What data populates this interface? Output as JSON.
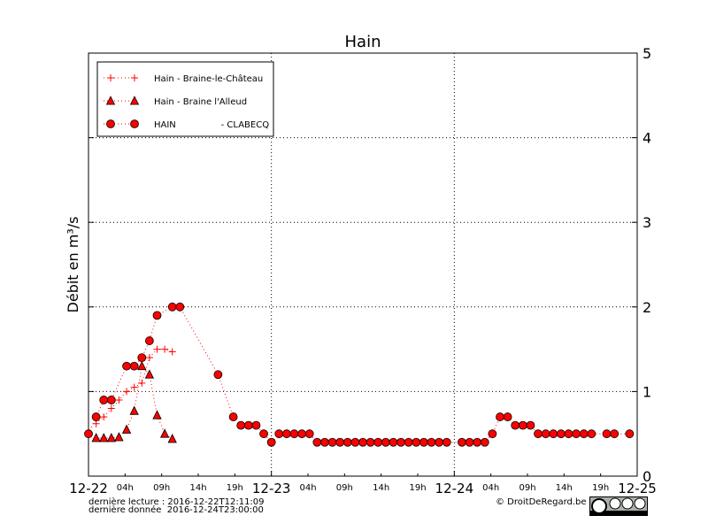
{
  "chart_data": {
    "type": "line",
    "title": "Hain",
    "y_label": "Débit en m³/s",
    "xlim": [
      0,
      72
    ],
    "ylim": [
      0,
      5
    ],
    "yticks": [
      0,
      1,
      2,
      3,
      4,
      5
    ],
    "grid": true,
    "legend": "upper left",
    "xticks": [
      {
        "value": 0,
        "label": "12-22"
      },
      {
        "value": 24,
        "label": "12-23"
      },
      {
        "value": 48,
        "label": "12-24"
      },
      {
        "value": 72,
        "label": "12-25"
      }
    ],
    "xminor_ticks": [
      {
        "value": 4.8,
        "label": "04h"
      },
      {
        "value": 9.6,
        "label": "09h"
      },
      {
        "value": 14.4,
        "label": "14h"
      },
      {
        "value": 19.2,
        "label": "19h"
      },
      {
        "value": 28.8,
        "label": "04h"
      },
      {
        "value": 33.6,
        "label": "09h"
      },
      {
        "value": 38.4,
        "label": "14h"
      },
      {
        "value": 43.2,
        "label": "19h"
      },
      {
        "value": 52.8,
        "label": "04h"
      },
      {
        "value": 57.6,
        "label": "09h"
      },
      {
        "value": 62.4,
        "label": "14h"
      },
      {
        "value": 67.2,
        "label": "19h"
      }
    ],
    "series": [
      {
        "name": "Hain - Braine-le-Château",
        "color": "#ff0000",
        "marker": "plus",
        "x": [
          1,
          2,
          3,
          4,
          5,
          6,
          7,
          8,
          9,
          10,
          11
        ],
        "values": [
          0.62,
          0.7,
          0.8,
          0.9,
          1.0,
          1.05,
          1.1,
          1.4,
          1.5,
          1.5,
          1.47
        ]
      },
      {
        "name": "Hain - Braine l'Alleud",
        "color": "#ff0000",
        "marker": "triangle",
        "x": [
          1,
          2,
          3,
          4,
          5,
          6,
          7,
          8,
          9,
          10,
          11
        ],
        "values": [
          0.45,
          0.45,
          0.45,
          0.46,
          0.55,
          0.77,
          1.3,
          1.2,
          0.72,
          0.5,
          0.44
        ]
      },
      {
        "name": "HAIN                - CLABECQ",
        "color": "#ff0000",
        "marker": "circle",
        "x": [
          0,
          1,
          2,
          3,
          5,
          6,
          7,
          8,
          9,
          11,
          12,
          17,
          19,
          20,
          21,
          22,
          23,
          24,
          25,
          26,
          27,
          28,
          29,
          30,
          31,
          32,
          33,
          34,
          35,
          36,
          37,
          38,
          39,
          40,
          41,
          42,
          43,
          44,
          45,
          46,
          47,
          49,
          50,
          51,
          52,
          53,
          54,
          55,
          56,
          57,
          58,
          59,
          60,
          61,
          62,
          63,
          64,
          65,
          66,
          68,
          69,
          71
        ],
        "values": [
          0.5,
          0.7,
          0.9,
          0.9,
          1.3,
          1.3,
          1.4,
          1.6,
          1.9,
          2.0,
          2.0,
          1.2,
          0.7,
          0.6,
          0.6,
          0.6,
          0.5,
          0.4,
          0.5,
          0.5,
          0.5,
          0.5,
          0.5,
          0.4,
          0.4,
          0.4,
          0.4,
          0.4,
          0.4,
          0.4,
          0.4,
          0.4,
          0.4,
          0.4,
          0.4,
          0.4,
          0.4,
          0.4,
          0.4,
          0.4,
          0.4,
          0.4,
          0.4,
          0.4,
          0.4,
          0.5,
          0.7,
          0.7,
          0.6,
          0.6,
          0.6,
          0.5,
          0.5,
          0.5,
          0.5,
          0.5,
          0.5,
          0.5,
          0.5,
          0.5,
          0.5,
          0.5
        ]
      }
    ],
    "footer_left": [
      "dernière lecture : 2016-12-22T12:11:09",
      "dernière donnée  2016-12-24T23:00:00"
    ],
    "footer_right": "© DroitDeRegard.be"
  }
}
